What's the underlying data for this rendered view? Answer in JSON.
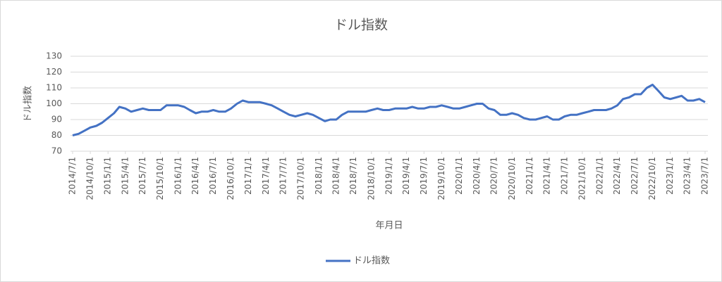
{
  "chart_data": {
    "type": "line",
    "title": "ドル指数",
    "x_label": "年月日",
    "y_label": "ドル指数",
    "x": [
      "2014/7/1",
      "2014/8/1",
      "2014/9/1",
      "2014/10/1",
      "2014/11/1",
      "2014/12/1",
      "2015/1/1",
      "2015/2/1",
      "2015/3/1",
      "2015/4/1",
      "2015/5/1",
      "2015/6/1",
      "2015/7/1",
      "2015/8/1",
      "2015/9/1",
      "2015/10/1",
      "2015/11/1",
      "2015/12/1",
      "2016/1/1",
      "2016/2/1",
      "2016/3/1",
      "2016/4/1",
      "2016/5/1",
      "2016/6/1",
      "2016/7/1",
      "2016/8/1",
      "2016/9/1",
      "2016/10/1",
      "2016/11/1",
      "2016/12/1",
      "2017/1/1",
      "2017/2/1",
      "2017/3/1",
      "2017/4/1",
      "2017/5/1",
      "2017/6/1",
      "2017/7/1",
      "2017/8/1",
      "2017/9/1",
      "2017/10/1",
      "2017/11/1",
      "2017/12/1",
      "2018/1/1",
      "2018/2/1",
      "2018/3/1",
      "2018/4/1",
      "2018/5/1",
      "2018/6/1",
      "2018/7/1",
      "2018/8/1",
      "2018/9/1",
      "2018/10/1",
      "2018/11/1",
      "2018/12/1",
      "2019/1/1",
      "2019/2/1",
      "2019/3/1",
      "2019/4/1",
      "2019/5/1",
      "2019/6/1",
      "2019/7/1",
      "2019/8/1",
      "2019/9/1",
      "2019/10/1",
      "2019/11/1",
      "2019/12/1",
      "2020/1/1",
      "2020/2/1",
      "2020/3/1",
      "2020/4/1",
      "2020/5/1",
      "2020/6/1",
      "2020/7/1",
      "2020/8/1",
      "2020/9/1",
      "2020/10/1",
      "2020/11/1",
      "2020/12/1",
      "2021/1/1",
      "2021/2/1",
      "2021/3/1",
      "2021/4/1",
      "2021/5/1",
      "2021/6/1",
      "2021/7/1",
      "2021/8/1",
      "2021/9/1",
      "2021/10/1",
      "2021/11/1",
      "2021/12/1",
      "2022/1/1",
      "2022/2/1",
      "2022/3/1",
      "2022/4/1",
      "2022/5/1",
      "2022/6/1",
      "2022/7/1",
      "2022/8/1",
      "2022/9/1",
      "2022/10/1",
      "2022/11/1",
      "2022/12/1",
      "2023/1/1",
      "2023/2/1",
      "2023/3/1",
      "2023/4/1",
      "2023/5/1",
      "2023/6/1",
      "2023/7/1"
    ],
    "series": [
      {
        "name": "ドル指数",
        "color": "#4472c4",
        "values": [
          80,
          81,
          83,
          85,
          86,
          88,
          91,
          94,
          98,
          97,
          95,
          96,
          97,
          96,
          96,
          96,
          99,
          99,
          99,
          98,
          96,
          94,
          95,
          95,
          96,
          95,
          95,
          97,
          100,
          102,
          101,
          101,
          101,
          100,
          99,
          97,
          95,
          93,
          92,
          93,
          94,
          93,
          91,
          89,
          90,
          90,
          93,
          95,
          95,
          95,
          95,
          96,
          97,
          96,
          96,
          97,
          97,
          97,
          98,
          97,
          97,
          98,
          98,
          99,
          98,
          97,
          97,
          98,
          99,
          100,
          100,
          97,
          96,
          93,
          93,
          94,
          93,
          91,
          90,
          90,
          91,
          92,
          90,
          90,
          92,
          93,
          93,
          94,
          95,
          96,
          96,
          96,
          97,
          99,
          103,
          104,
          106,
          106,
          110,
          112,
          108,
          104,
          103,
          104,
          105,
          102,
          102,
          103,
          101
        ]
      }
    ],
    "xlim": [
      "2014/7/1",
      "2023/7/1"
    ],
    "xticks": [
      "2014/7/1",
      "2014/10/1",
      "2015/1/1",
      "2015/4/1",
      "2015/7/1",
      "2015/10/1",
      "2016/1/1",
      "2016/4/1",
      "2016/7/1",
      "2016/10/1",
      "2017/1/1",
      "2017/4/1",
      "2017/7/1",
      "2017/10/1",
      "2018/1/1",
      "2018/4/1",
      "2018/7/1",
      "2018/10/1",
      "2019/1/1",
      "2019/4/1",
      "2019/7/1",
      "2019/10/1",
      "2020/1/1",
      "2020/4/1",
      "2020/7/1",
      "2020/10/1",
      "2021/1/1",
      "2021/4/1",
      "2021/7/1",
      "2021/10/1",
      "2022/1/1",
      "2022/4/1",
      "2022/7/1",
      "2022/10/1",
      "2023/1/1",
      "2023/4/1",
      "2023/7/1"
    ],
    "ylim": [
      70,
      130
    ],
    "yticks": [
      70,
      80,
      90,
      100,
      110,
      120,
      130
    ],
    "grid": true,
    "legend": "bottom"
  }
}
